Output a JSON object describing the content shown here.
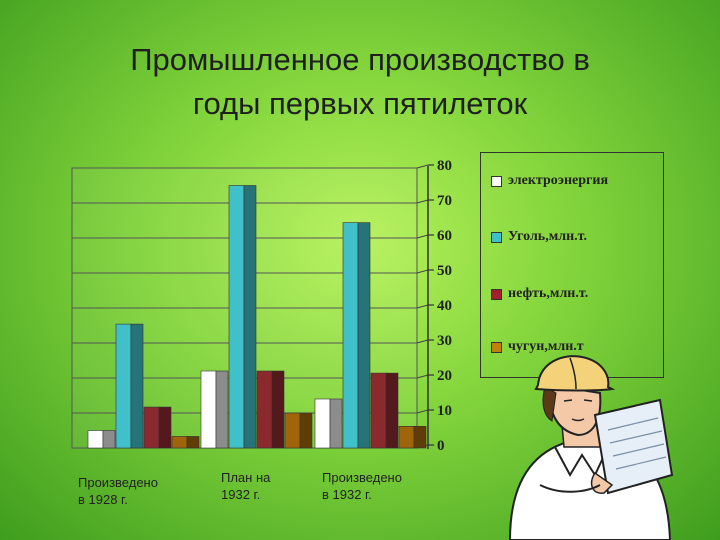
{
  "title": {
    "line1": "Промышленное производство в",
    "line2": "годы первых пятилеток"
  },
  "chart_data": {
    "type": "bar",
    "categories": [
      "Произведено в 1928 г.",
      "План на 1932 г.",
      "Произведено в 1932 г."
    ],
    "category_lines": [
      [
        "Произведено",
        "в 1928 г."
      ],
      [
        "План на",
        "1932 г."
      ],
      [
        "Произведено",
        "в 1932 г."
      ]
    ],
    "series": [
      {
        "name": "электроэнергия",
        "values": [
          5,
          22,
          14
        ],
        "color": "#ffffff"
      },
      {
        "name": "Уголь,млн.т.",
        "values": [
          35.4,
          75,
          64.4
        ],
        "color": "#40c0c8"
      },
      {
        "name": "нефть,млн.т.",
        "values": [
          11.7,
          22,
          21.4
        ],
        "color": "#8b2a2e"
      },
      {
        "name": "чугун,млн.т",
        "values": [
          3.3,
          10,
          6.2
        ],
        "color": "#a0650a"
      }
    ],
    "yticks": [
      "0",
      "10",
      "20",
      "30",
      "40",
      "50",
      "60",
      "70",
      "80"
    ],
    "ylim": [
      0,
      80
    ],
    "grid": true,
    "legend_position": "right",
    "style": "3d-bars"
  }
}
